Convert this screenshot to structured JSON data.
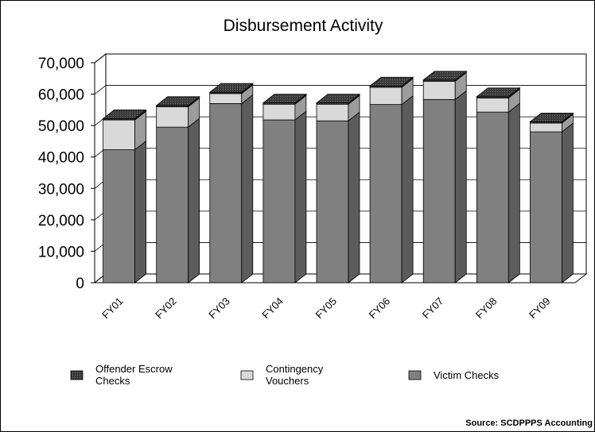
{
  "chart_data": {
    "type": "bar",
    "stacked": true,
    "three_d": true,
    "title": "Disbursement Activity",
    "xlabel": "",
    "ylabel": "",
    "ylim": [
      0,
      70000
    ],
    "yticks": [
      "0",
      "10,000",
      "20,000",
      "30,000",
      "40,000",
      "50,000",
      "60,000",
      "70,000"
    ],
    "categories": [
      "FY01",
      "FY02",
      "FY03",
      "FY04",
      "FY05",
      "FY06",
      "FY07",
      "FY08",
      "FY09"
    ],
    "series": [
      {
        "name": "Victim Checks",
        "color": "#808080",
        "values": [
          42300,
          49500,
          57000,
          51800,
          51500,
          56700,
          58300,
          54300,
          48000
        ]
      },
      {
        "name": "Contingency Vouchers",
        "color": "#d9d9d9",
        "values": [
          9500,
          6500,
          3200,
          5000,
          5300,
          5500,
          5800,
          4500,
          2800
        ]
      },
      {
        "name": "Offender Escrow Checks",
        "color": "#333333",
        "values": [
          400,
          400,
          400,
          400,
          400,
          400,
          400,
          400,
          400
        ]
      }
    ],
    "legend": [
      {
        "label": "Offender Escrow Checks",
        "color": "#333333"
      },
      {
        "label": "Contingency Vouchers",
        "color": "#d9d9d9"
      },
      {
        "label": "Victim Checks",
        "color": "#808080"
      }
    ],
    "legend_position": "bottom",
    "grid": true,
    "source": "Source: SCDPPPS Accounting"
  }
}
